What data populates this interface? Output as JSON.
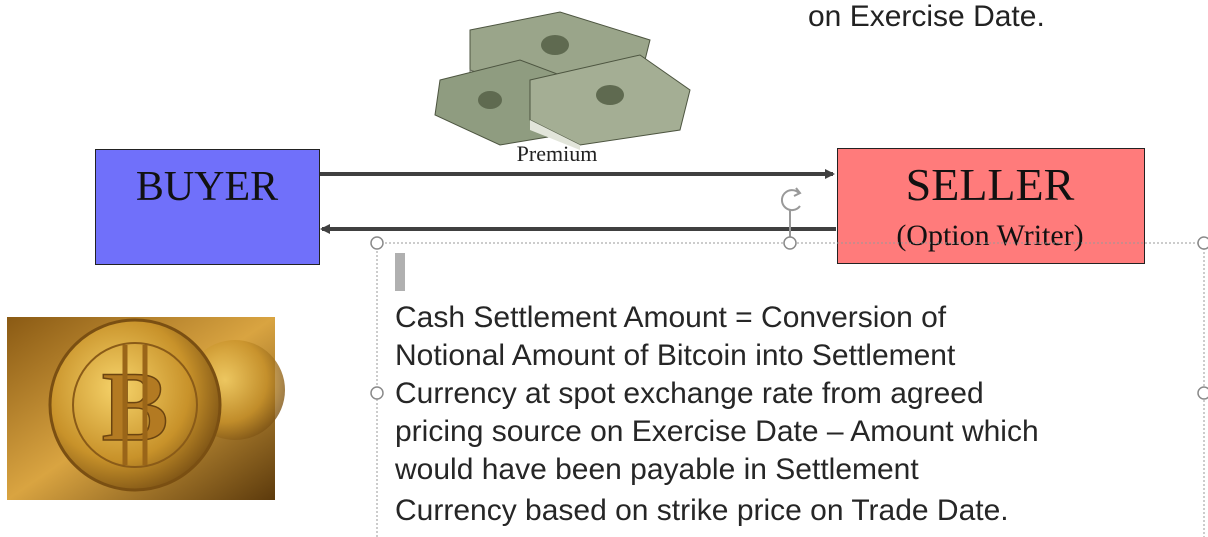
{
  "top_text": "on Exercise Date.",
  "buyer": {
    "label": "BUYER"
  },
  "seller": {
    "label": "SELLER",
    "sublabel": "(Option Writer)"
  },
  "arrow_label": "Premium",
  "textbox": {
    "lines": [
      "Cash Settlement Amount = Conversion of",
      "Notional Amount of Bitcoin into Settlement",
      "Currency at spot exchange rate from agreed",
      "pricing source on Exercise Date – Amount which",
      "would have been payable in Settlement",
      "Currency based on strike price on Trade Date."
    ]
  }
}
